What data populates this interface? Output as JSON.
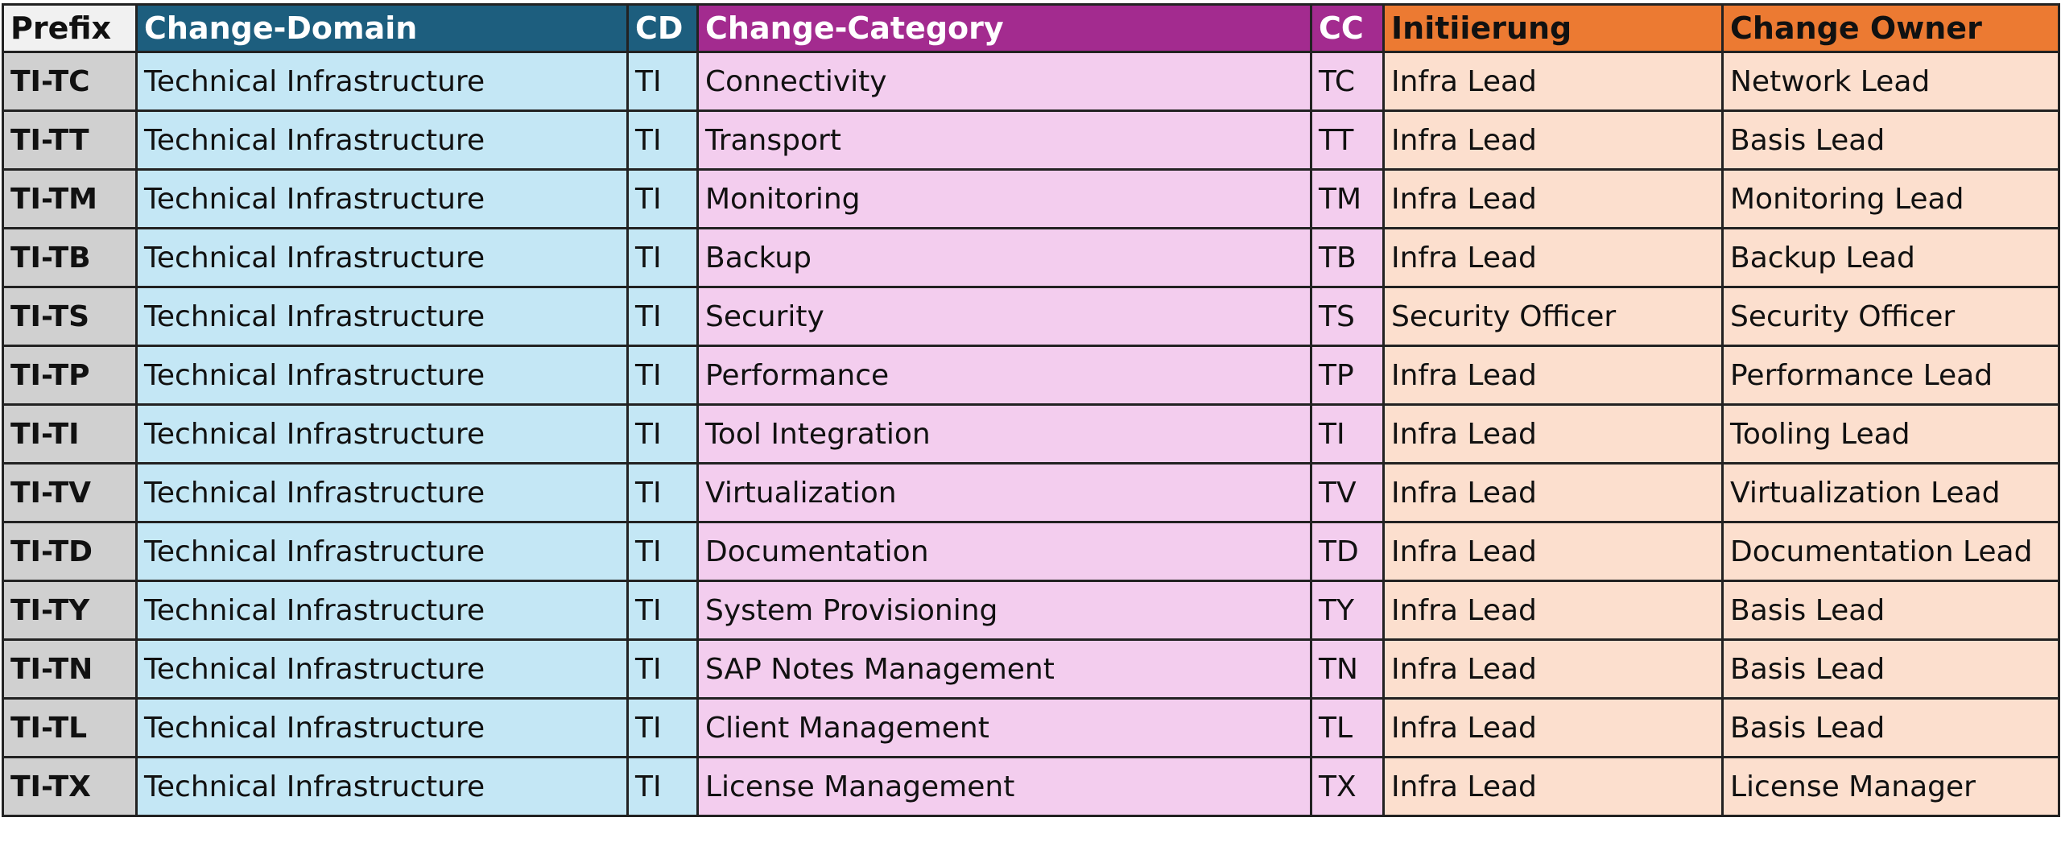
{
  "headers": {
    "prefix": "Prefix",
    "domain": "Change-Domain",
    "cd": "CD",
    "category": "Change-Category",
    "cc": "CC",
    "init": "Initiierung",
    "owner": "Change Owner"
  },
  "colors": {
    "domain_header": "#1d5e7e",
    "domain_cell": "#c4e7f5",
    "category_header": "#a32b8f",
    "category_cell": "#f3cdee",
    "owner_header": "#ec7a32",
    "owner_cell": "#fcdfce",
    "prefix_cell": "#d0d0d0"
  },
  "rows": [
    {
      "prefix": "TI-TC",
      "domain": "Technical Infrastructure",
      "cd": "TI",
      "category": "Connectivity",
      "cc": "TC",
      "init": "Infra Lead",
      "owner": "Network Lead"
    },
    {
      "prefix": "TI-TT",
      "domain": "Technical Infrastructure",
      "cd": "TI",
      "category": "Transport",
      "cc": "TT",
      "init": "Infra Lead",
      "owner": "Basis Lead"
    },
    {
      "prefix": "TI-TM",
      "domain": "Technical Infrastructure",
      "cd": "TI",
      "category": "Monitoring",
      "cc": "TM",
      "init": "Infra Lead",
      "owner": "Monitoring Lead"
    },
    {
      "prefix": "TI-TB",
      "domain": "Technical Infrastructure",
      "cd": "TI",
      "category": "Backup",
      "cc": "TB",
      "init": "Infra Lead",
      "owner": "Backup Lead"
    },
    {
      "prefix": "TI-TS",
      "domain": "Technical Infrastructure",
      "cd": "TI",
      "category": "Security",
      "cc": "TS",
      "init": "Security Officer",
      "owner": "Security Officer"
    },
    {
      "prefix": "TI-TP",
      "domain": "Technical Infrastructure",
      "cd": "TI",
      "category": "Performance",
      "cc": "TP",
      "init": "Infra Lead",
      "owner": "Performance Lead"
    },
    {
      "prefix": "TI-TI",
      "domain": "Technical Infrastructure",
      "cd": "TI",
      "category": "Tool Integration",
      "cc": "TI",
      "init": "Infra Lead",
      "owner": "Tooling Lead"
    },
    {
      "prefix": "TI-TV",
      "domain": "Technical Infrastructure",
      "cd": "TI",
      "category": "Virtualization",
      "cc": "TV",
      "init": "Infra Lead",
      "owner": "Virtualization Lead"
    },
    {
      "prefix": "TI-TD",
      "domain": "Technical Infrastructure",
      "cd": "TI",
      "category": "Documentation",
      "cc": "TD",
      "init": "Infra Lead",
      "owner": "Documentation Lead"
    },
    {
      "prefix": "TI-TY",
      "domain": "Technical Infrastructure",
      "cd": "TI",
      "category": "System Provisioning",
      "cc": "TY",
      "init": "Infra Lead",
      "owner": "Basis Lead"
    },
    {
      "prefix": "TI-TN",
      "domain": "Technical Infrastructure",
      "cd": "TI",
      "category": "SAP Notes Management",
      "cc": "TN",
      "init": "Infra Lead",
      "owner": "Basis Lead"
    },
    {
      "prefix": "TI-TL",
      "domain": "Technical Infrastructure",
      "cd": "TI",
      "category": "Client Management",
      "cc": "TL",
      "init": "Infra Lead",
      "owner": "Basis Lead"
    },
    {
      "prefix": "TI-TX",
      "domain": "Technical Infrastructure",
      "cd": "TI",
      "category": "License Management",
      "cc": "TX",
      "init": "Infra Lead",
      "owner": "License Manager"
    }
  ]
}
